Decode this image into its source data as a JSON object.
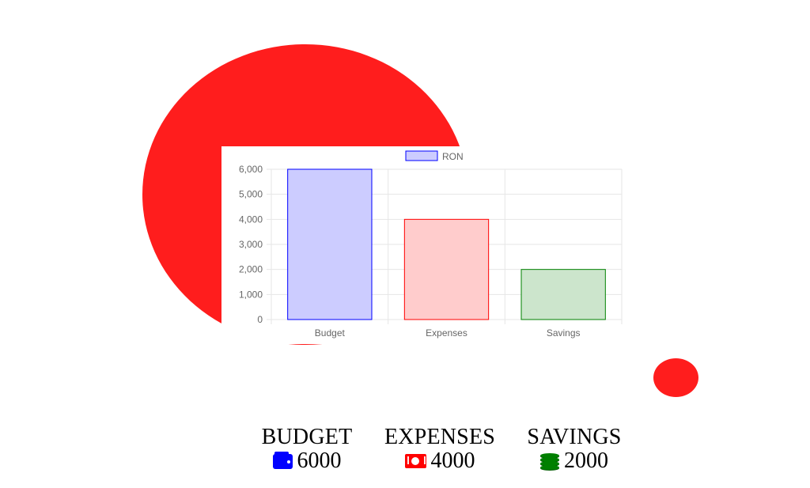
{
  "colors": {
    "blob": "#ff1d1d",
    "grid": "#e6e6e6",
    "tick_text": "#666666",
    "budget_border": "#0000ff",
    "budget_fill": "#ccccff",
    "expenses_border": "#ff0000",
    "expenses_fill": "#ffcccc",
    "savings_border": "#008000",
    "savings_fill": "#cce5cc"
  },
  "chart_data": {
    "type": "bar",
    "categories": [
      "Budget",
      "Expenses",
      "Savings"
    ],
    "series": [
      {
        "name": "RON",
        "values": [
          6000,
          4000,
          2000
        ]
      }
    ],
    "ylim": [
      0,
      6000
    ],
    "yticks": [
      "0",
      "1,000",
      "2,000",
      "3,000",
      "4,000",
      "5,000",
      "6,000"
    ],
    "grid": true,
    "legend": "top"
  },
  "summary": {
    "budget": {
      "label": "BUDGET",
      "value": "6000",
      "icon": "wallet-icon"
    },
    "expenses": {
      "label": "EXPENSES",
      "value": "4000",
      "icon": "money-bill-icon"
    },
    "savings": {
      "label": "SAVINGS",
      "value": "2000",
      "icon": "coins-icon"
    }
  }
}
